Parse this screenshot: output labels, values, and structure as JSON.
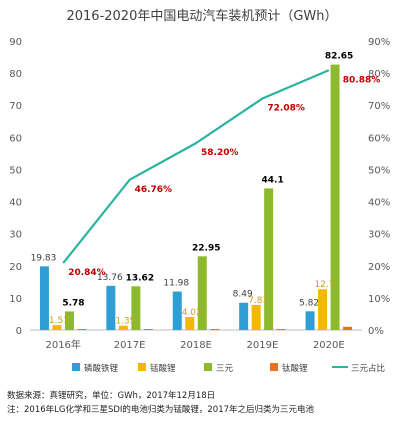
{
  "chart_data": {
    "type": "bar",
    "title": "2016-2020年中国电动汽车装机预计（GWh）",
    "categories": [
      "2016年",
      "2017E",
      "2018E",
      "2019E",
      "2020E"
    ],
    "series": [
      {
        "name": "磷酸铁锂",
        "values": [
          19.83,
          13.76,
          11.98,
          8.49,
          5.82
        ],
        "color": "#2E9ED4",
        "label_color": "#404040",
        "label_weight": "normal"
      },
      {
        "name": "锰酸锂",
        "values": [
          1.51,
          1.35,
          4.02,
          7.81,
          12.7
        ],
        "color": "#F5B800",
        "label_color": "#C8A020",
        "label_weight": "normal"
      },
      {
        "name": "三元",
        "values": [
          5.78,
          13.62,
          22.95,
          44.1,
          82.65
        ],
        "color": "#8DBA2C",
        "label_color": "#000000",
        "label_weight": "bold"
      },
      {
        "name": "钛酸锂",
        "values": [
          0.3,
          0.3,
          0.3,
          0.3,
          1.0
        ],
        "color": "#E8711A",
        "label_color": null,
        "label_weight": "normal"
      }
    ],
    "line_series": {
      "name": "三元占比",
      "values": [
        20.84,
        46.76,
        58.2,
        72.08,
        80.88
      ],
      "labels": [
        "20.84%",
        "46.76%",
        "58.20%",
        "72.08%",
        "80.88%"
      ],
      "color": "#2BB3A0",
      "label_color": "#C00000"
    },
    "left_axis": {
      "min": 0,
      "max": 90,
      "step": 10,
      "ticks": [
        "0",
        "10",
        "20",
        "30",
        "40",
        "50",
        "60",
        "70",
        "80",
        "90"
      ]
    },
    "right_axis": {
      "min": 0,
      "max": 90,
      "step": 10,
      "ticks": [
        "0%",
        "10%",
        "20%",
        "30%",
        "40%",
        "50%",
        "60%",
        "70%",
        "80%",
        "90%"
      ]
    },
    "legend_position": "bottom",
    "grid": false
  },
  "notes": {
    "source": "数据来源：真锂研究，单位：GWh，2017年12月18日",
    "note": "注：2016年LG化学和三星SDI的电池归类为锰酸锂，2017年之后归类为三元电池"
  }
}
